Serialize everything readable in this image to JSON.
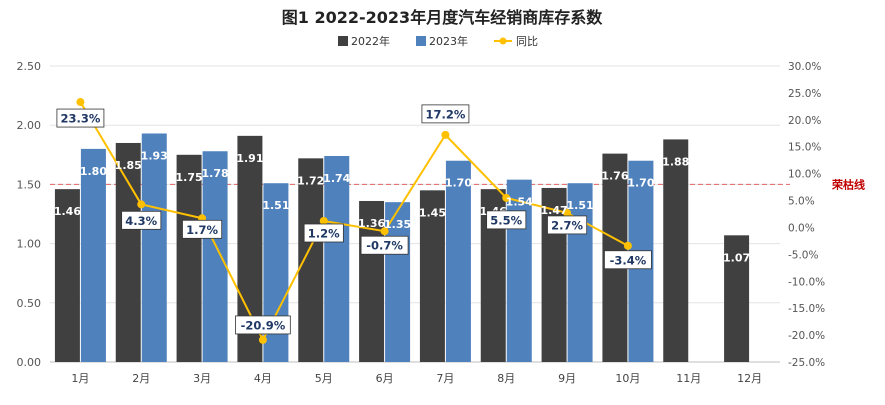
{
  "chart_data": {
    "type": "bar",
    "title": "图1  2022-2023年月度汽车经销商库存系数",
    "categories": [
      "1月",
      "2月",
      "3月",
      "4月",
      "5月",
      "6月",
      "7月",
      "8月",
      "9月",
      "10月",
      "11月",
      "12月"
    ],
    "series": [
      {
        "name": "2022年",
        "kind": "bar",
        "color": "#404040",
        "values": [
          1.46,
          1.85,
          1.75,
          1.91,
          1.72,
          1.36,
          1.45,
          1.46,
          1.47,
          1.76,
          1.88,
          1.07
        ],
        "labels": [
          "1.46",
          "1.85",
          "1.75",
          "1.91",
          "1.72",
          "1.36",
          "1.45",
          "1.46",
          "1.47",
          "1.76",
          "1.88",
          "1.07"
        ]
      },
      {
        "name": "2023年",
        "kind": "bar",
        "color": "#4f81bd",
        "values": [
          1.8,
          1.93,
          1.78,
          1.51,
          1.74,
          1.35,
          1.7,
          1.54,
          1.51,
          1.7,
          null,
          null
        ],
        "labels": [
          "1.80",
          "1.93",
          "1.78",
          "1.51",
          "1.74",
          "1.35",
          "1.70",
          "1.54",
          "1.51",
          "1.70",
          null,
          null
        ]
      },
      {
        "name": "同比",
        "kind": "line",
        "axis": "right",
        "color": "#ffc000",
        "values": [
          23.3,
          4.3,
          1.7,
          -20.9,
          1.2,
          -0.7,
          17.2,
          5.5,
          2.7,
          -3.4,
          null,
          null
        ],
        "labels": [
          "23.3%",
          "4.3%",
          "1.7%",
          "-20.9%",
          "1.2%",
          "-0.7%",
          "17.2%",
          "5.5%",
          "2.7%",
          "-3.4%",
          null,
          null
        ]
      }
    ],
    "y_left": {
      "ylim": [
        0,
        2.5
      ],
      "ticks": [
        "0.00",
        "0.50",
        "1.00",
        "1.50",
        "2.00",
        "2.50"
      ]
    },
    "y_right": {
      "ylim": [
        -25,
        30
      ],
      "ticks": [
        "-25.0%",
        "-20.0%",
        "-15.0%",
        "-10.0%",
        "-5.0%",
        "0.0%",
        "5.0%",
        "10.0%",
        "15.0%",
        "20.0%",
        "25.0%",
        "30.0%"
      ]
    },
    "reference_line": {
      "value": 1.5,
      "label": "荣枯线",
      "color": "#c00000"
    },
    "legend_position": "top",
    "grid": true
  }
}
